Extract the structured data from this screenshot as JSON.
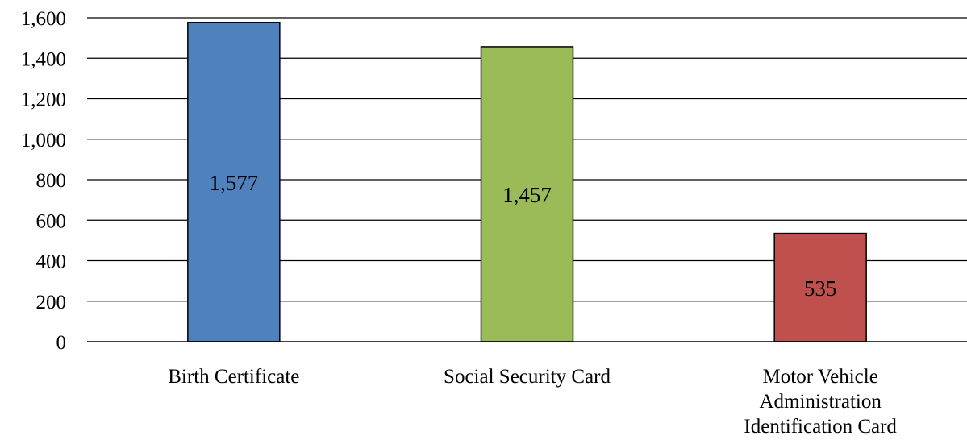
{
  "chart_data": {
    "type": "bar",
    "categories": [
      [
        "Birth Certificate"
      ],
      [
        "Social Security Card"
      ],
      [
        "Motor Vehicle",
        "Administration",
        "Identification Card"
      ]
    ],
    "values": [
      1577,
      1457,
      535
    ],
    "value_labels": [
      "1,577",
      "1,457",
      "535"
    ],
    "colors": [
      "#4f81bd",
      "#9bbb59",
      "#c0504d"
    ],
    "ylim": [
      0,
      1600
    ],
    "yticks": [
      0,
      200,
      400,
      600,
      800,
      1000,
      1200,
      1400,
      1600
    ],
    "ytick_labels": [
      "0",
      "200",
      "400",
      "600",
      "800",
      "1,000",
      "1,200",
      "1,400",
      "1,600"
    ],
    "grid": true,
    "legend": "none",
    "title": "",
    "xlabel": "",
    "ylabel": ""
  }
}
